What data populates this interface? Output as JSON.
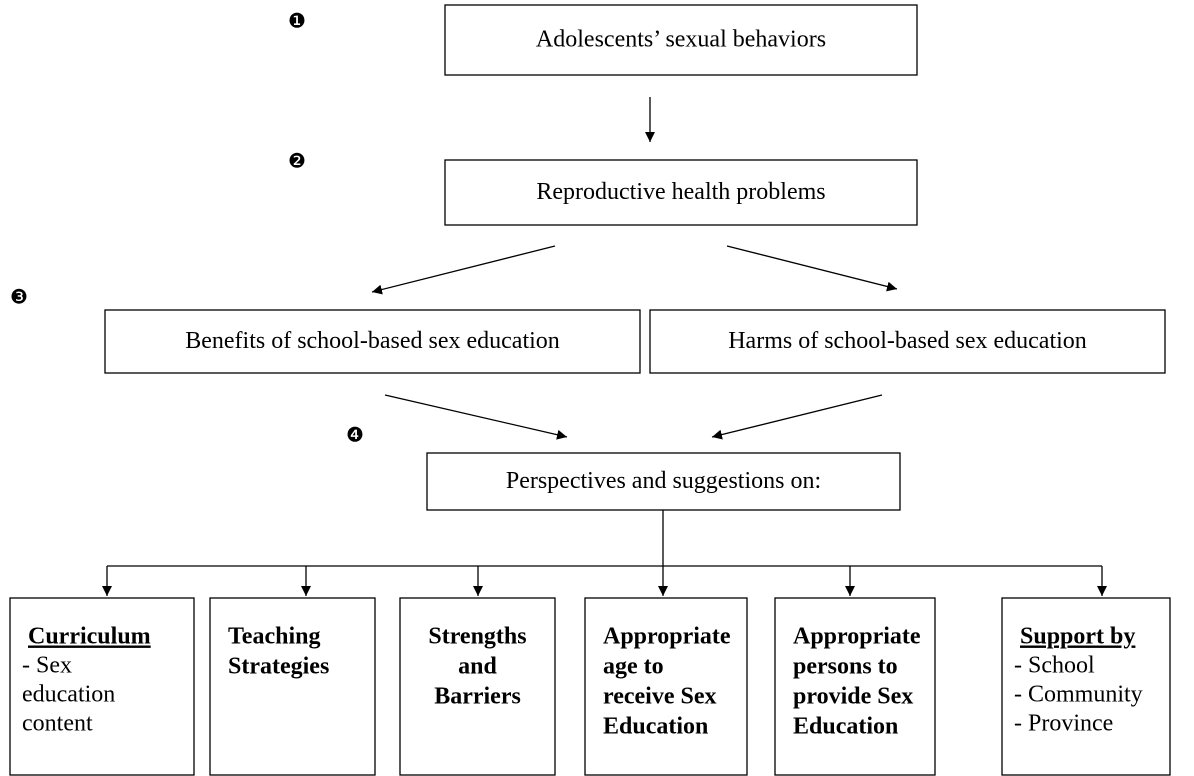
{
  "markers": [
    "❶",
    "❷",
    "❸",
    "❹"
  ],
  "nodes": [
    {
      "label": "Adolescents’ sexual behaviors"
    },
    {
      "label": "Reproductive health problems"
    },
    {
      "label": "Benefits of school-based sex education"
    },
    {
      "label": "Harms of school-based sex education"
    },
    {
      "label": "Perspectives and suggestions on:"
    }
  ],
  "topics": [
    {
      "heading": "Curriculum",
      "lines": [
        "- Sex",
        "education",
        "content"
      ]
    },
    {
      "lines": [
        "Teaching",
        "Strategies"
      ]
    },
    {
      "lines": [
        "Strengths",
        "and",
        "Barriers"
      ]
    },
    {
      "lines": [
        "Appropriate",
        "age to",
        "receive Sex",
        "Education"
      ]
    },
    {
      "lines": [
        "Appropriate",
        "persons to",
        "provide Sex",
        "Education"
      ]
    },
    {
      "heading": "Support by",
      "lines": [
        "- School",
        "- Community",
        "- Province"
      ]
    }
  ]
}
